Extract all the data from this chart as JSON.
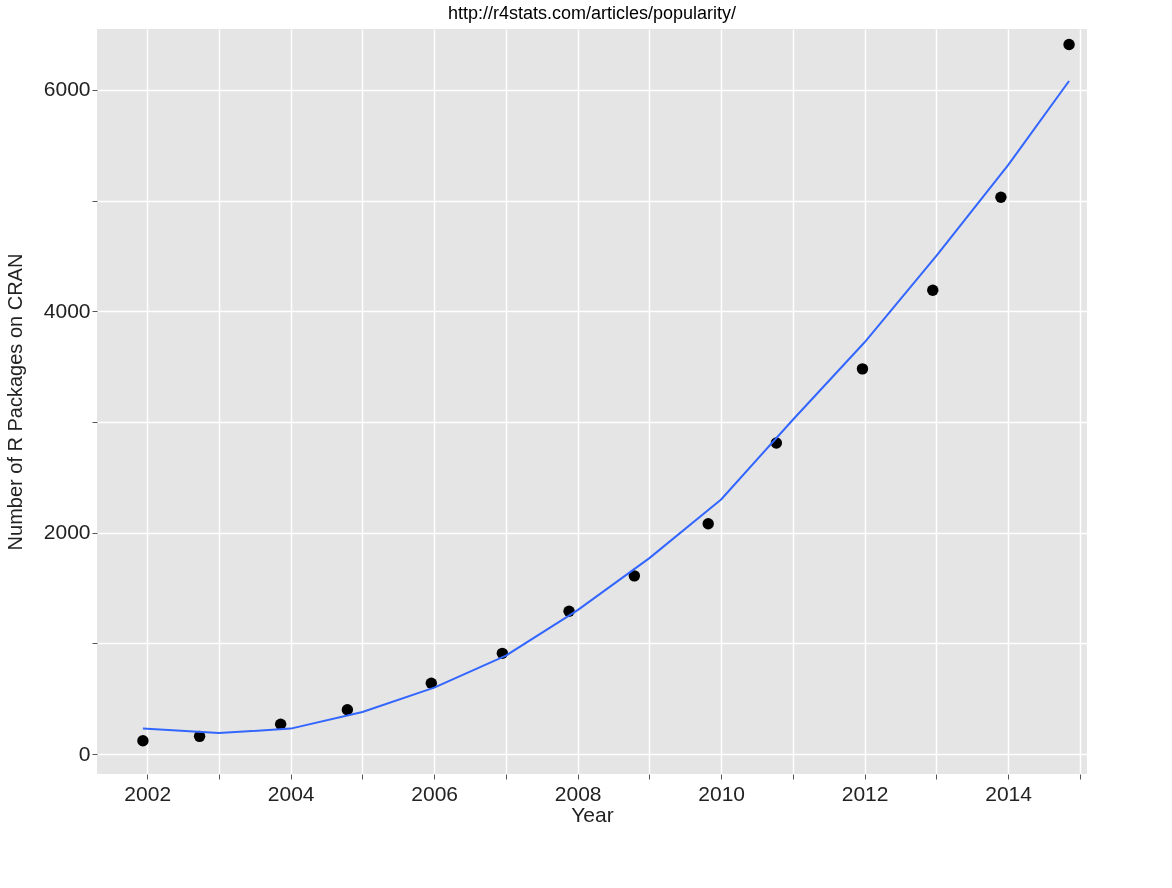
{
  "chart_data": {
    "type": "scatter",
    "xlabel": "Year",
    "ylabel": "Number of R Packages on CRAN",
    "annotations": [
      "http://r4stats.com/articles/popularity/"
    ],
    "series": [
      {
        "color": "#000000",
        "marker": "circle",
        "x": [
          2001.94,
          2002.73,
          2003.86,
          2004.79,
          2005.96,
          2006.95,
          2007.88,
          2008.79,
          2009.82,
          2010.77,
          2011.97,
          2012.95,
          2013.9,
          2014.85
        ],
        "values": [
          120,
          160,
          270,
          400,
          640,
          910,
          1290,
          1610,
          2080,
          2810,
          3480,
          4190,
          5030,
          6410
        ]
      },
      {
        "type": "line",
        "color": "#3366ff",
        "line_style": "solid",
        "x": [
          2001.94,
          2003,
          2004,
          2005,
          2006,
          2007,
          2008,
          2009,
          2010,
          2011,
          2012,
          2013,
          2014,
          2014.85
        ],
        "values": [
          230,
          190,
          230,
          380,
          600,
          890,
          1300,
          1770,
          2300,
          3020,
          3720,
          4500,
          5320,
          6080
        ]
      }
    ],
    "xlim": [
      2001.3,
      2015.1
    ],
    "ylim": [
      -180,
      6550
    ],
    "xticks": [
      2002,
      {
        "value": 2003,
        "label": null
      },
      2004,
      {
        "value": 2005,
        "label": null
      },
      2006,
      {
        "value": 2007,
        "label": null
      },
      2008,
      {
        "value": 2009,
        "label": null
      },
      2010,
      {
        "value": 2011,
        "label": null
      },
      2012,
      {
        "value": 2013,
        "label": null
      },
      2014,
      {
        "value": 2015,
        "label": null
      }
    ],
    "yticks": [
      0,
      {
        "value": 1000,
        "label": null
      },
      2000,
      {
        "value": 3000,
        "label": null
      },
      4000,
      {
        "value": 5000,
        "label": null
      },
      6000
    ],
    "grid": true
  }
}
